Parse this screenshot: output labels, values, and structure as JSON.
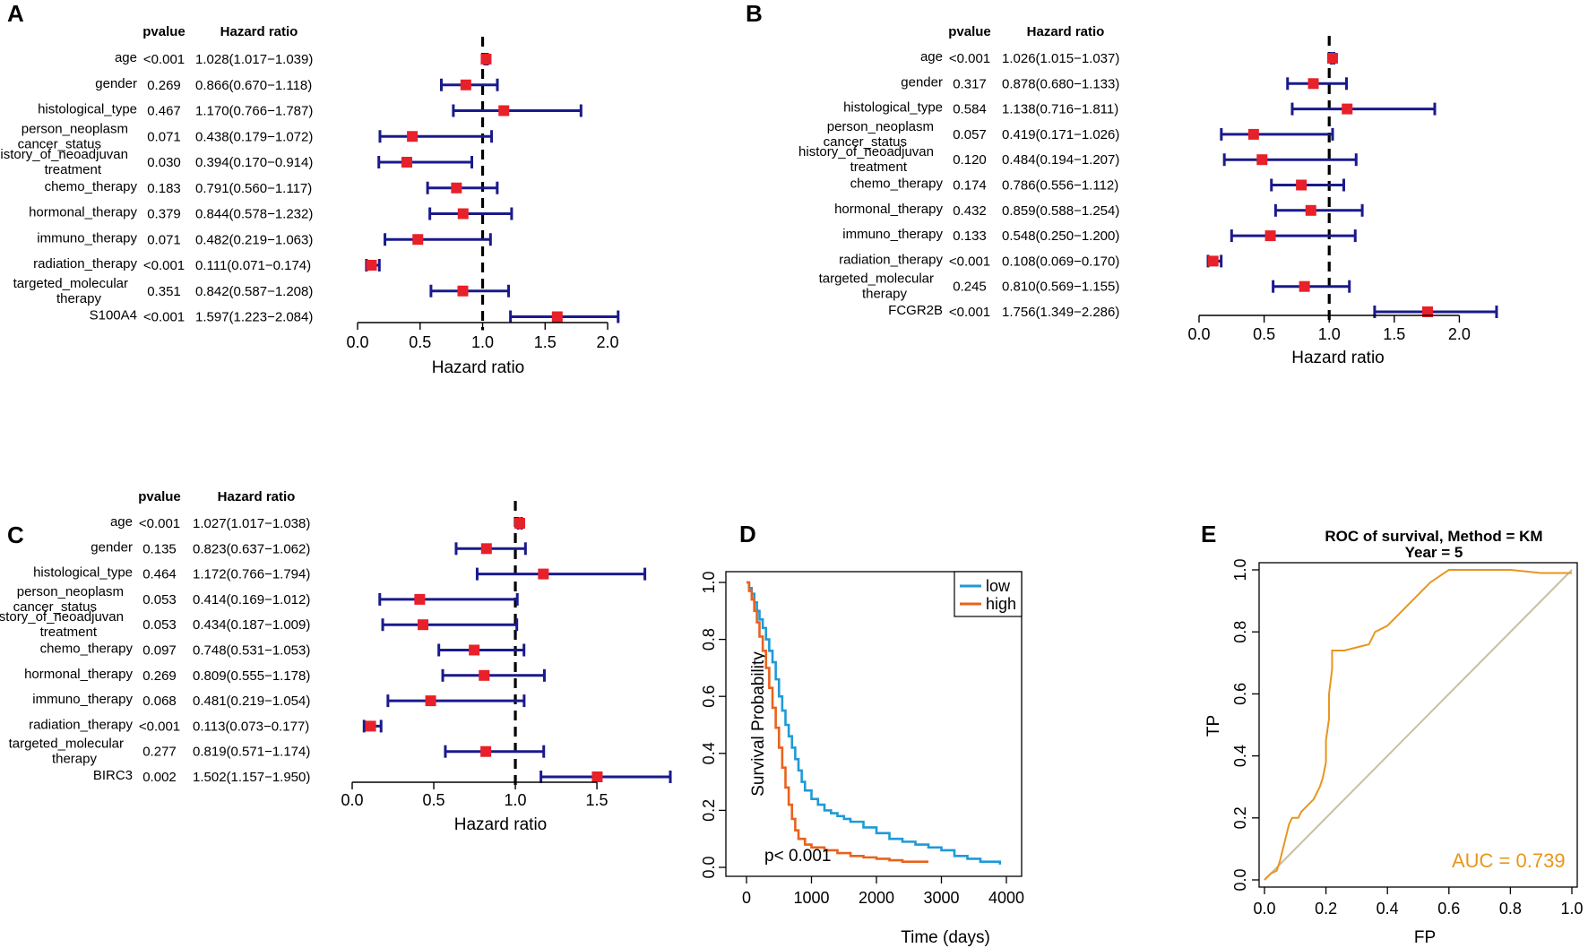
{
  "forest_plots": [
    {
      "letter": "A",
      "pvalue_header": "pvalue",
      "hr_header": "Hazard ratio",
      "xlabel": "Hazard ratio",
      "xlim": [
        0,
        2.1
      ],
      "ticks": [
        "0.0",
        "0.5",
        "1.0",
        "1.5",
        "2.0"
      ],
      "rows": [
        {
          "label": [
            "age"
          ],
          "pvalue": "<0.001",
          "hr_text": "1.028(1.017−1.039)",
          "hr": 1.028,
          "lo": 1.017,
          "hi": 1.039
        },
        {
          "label": [
            "gender"
          ],
          "pvalue": "0.269",
          "hr_text": "0.866(0.670−1.118)",
          "hr": 0.866,
          "lo": 0.67,
          "hi": 1.118
        },
        {
          "label": [
            "histological_type"
          ],
          "pvalue": "0.467",
          "hr_text": "1.170(0.766−1.787)",
          "hr": 1.17,
          "lo": 0.766,
          "hi": 1.787
        },
        {
          "label": [
            "person_neoplasm",
            "cancer_status"
          ],
          "pvalue": "0.071",
          "hr_text": "0.438(0.179−1.072)",
          "hr": 0.438,
          "lo": 0.179,
          "hi": 1.072
        },
        {
          "label": [
            "history_of_neoadjuvan",
            "treatment"
          ],
          "pvalue": "0.030",
          "hr_text": "0.394(0.170−0.914)",
          "hr": 0.394,
          "lo": 0.17,
          "hi": 0.914
        },
        {
          "label": [
            "chemo_therapy"
          ],
          "pvalue": "0.183",
          "hr_text": "0.791(0.560−1.117)",
          "hr": 0.791,
          "lo": 0.56,
          "hi": 1.117
        },
        {
          "label": [
            "hormonal_therapy"
          ],
          "pvalue": "0.379",
          "hr_text": "0.844(0.578−1.232)",
          "hr": 0.844,
          "lo": 0.578,
          "hi": 1.232
        },
        {
          "label": [
            "immuno_therapy"
          ],
          "pvalue": "0.071",
          "hr_text": "0.482(0.219−1.063)",
          "hr": 0.482,
          "lo": 0.219,
          "hi": 1.063
        },
        {
          "label": [
            "radiation_therapy"
          ],
          "pvalue": "<0.001",
          "hr_text": "0.111(0.071−0.174)",
          "hr": 0.111,
          "lo": 0.071,
          "hi": 0.174
        },
        {
          "label": [
            "targeted_molecular",
            "therapy"
          ],
          "pvalue": "0.351",
          "hr_text": "0.842(0.587−1.208)",
          "hr": 0.842,
          "lo": 0.587,
          "hi": 1.208
        },
        {
          "label": [
            "S100A4"
          ],
          "pvalue": "<0.001",
          "hr_text": "1.597(1.223−2.084)",
          "hr": 1.597,
          "lo": 1.223,
          "hi": 2.084
        }
      ]
    },
    {
      "letter": "B",
      "pvalue_header": "pvalue",
      "hr_header": "Hazard ratio",
      "xlabel": "Hazard ratio",
      "xlim": [
        0,
        2.3
      ],
      "ticks": [
        "0.0",
        "0.5",
        "1.0",
        "1.5",
        "2.0"
      ],
      "rows": [
        {
          "label": [
            "age"
          ],
          "pvalue": "<0.001",
          "hr_text": "1.026(1.015−1.037)",
          "hr": 1.026,
          "lo": 1.015,
          "hi": 1.037
        },
        {
          "label": [
            "gender"
          ],
          "pvalue": "0.317",
          "hr_text": "0.878(0.680−1.133)",
          "hr": 0.878,
          "lo": 0.68,
          "hi": 1.133
        },
        {
          "label": [
            "histological_type"
          ],
          "pvalue": "0.584",
          "hr_text": "1.138(0.716−1.811)",
          "hr": 1.138,
          "lo": 0.716,
          "hi": 1.811
        },
        {
          "label": [
            "person_neoplasm",
            "cancer_status"
          ],
          "pvalue": "0.057",
          "hr_text": "0.419(0.171−1.026)",
          "hr": 0.419,
          "lo": 0.171,
          "hi": 1.026
        },
        {
          "label": [
            "history_of_neoadjuvan",
            "treatment"
          ],
          "pvalue": "0.120",
          "hr_text": "0.484(0.194−1.207)",
          "hr": 0.484,
          "lo": 0.194,
          "hi": 1.207
        },
        {
          "label": [
            "chemo_therapy"
          ],
          "pvalue": "0.174",
          "hr_text": "0.786(0.556−1.112)",
          "hr": 0.786,
          "lo": 0.556,
          "hi": 1.112
        },
        {
          "label": [
            "hormonal_therapy"
          ],
          "pvalue": "0.432",
          "hr_text": "0.859(0.588−1.254)",
          "hr": 0.859,
          "lo": 0.588,
          "hi": 1.254
        },
        {
          "label": [
            "immuno_therapy"
          ],
          "pvalue": "0.133",
          "hr_text": "0.548(0.250−1.200)",
          "hr": 0.548,
          "lo": 0.25,
          "hi": 1.2
        },
        {
          "label": [
            "radiation_therapy"
          ],
          "pvalue": "<0.001",
          "hr_text": "0.108(0.069−0.170)",
          "hr": 0.108,
          "lo": 0.069,
          "hi": 0.17
        },
        {
          "label": [
            "targeted_molecular",
            "therapy"
          ],
          "pvalue": "0.245",
          "hr_text": "0.810(0.569−1.155)",
          "hr": 0.81,
          "lo": 0.569,
          "hi": 1.155
        },
        {
          "label": [
            "FCGR2B"
          ],
          "pvalue": "<0.001",
          "hr_text": "1.756(1.349−2.286)",
          "hr": 1.756,
          "lo": 1.349,
          "hi": 2.286
        }
      ]
    },
    {
      "letter": "C",
      "pvalue_header": "pvalue",
      "hr_header": "Hazard ratio",
      "xlabel": "Hazard ratio",
      "xlim": [
        0,
        1.95
      ],
      "ticks": [
        "0.0",
        "0.5",
        "1.0",
        "1.5"
      ],
      "rows": [
        {
          "label": [
            "age"
          ],
          "pvalue": "<0.001",
          "hr_text": "1.027(1.017−1.038)",
          "hr": 1.027,
          "lo": 1.017,
          "hi": 1.038
        },
        {
          "label": [
            "gender"
          ],
          "pvalue": "0.135",
          "hr_text": "0.823(0.637−1.062)",
          "hr": 0.823,
          "lo": 0.637,
          "hi": 1.062
        },
        {
          "label": [
            "histological_type"
          ],
          "pvalue": "0.464",
          "hr_text": "1.172(0.766−1.794)",
          "hr": 1.172,
          "lo": 0.766,
          "hi": 1.794
        },
        {
          "label": [
            "person_neoplasm",
            "cancer_status"
          ],
          "pvalue": "0.053",
          "hr_text": "0.414(0.169−1.012)",
          "hr": 0.414,
          "lo": 0.169,
          "hi": 1.012
        },
        {
          "label": [
            "history_of_neoadjuvan",
            "treatment"
          ],
          "pvalue": "0.053",
          "hr_text": "0.434(0.187−1.009)",
          "hr": 0.434,
          "lo": 0.187,
          "hi": 1.009
        },
        {
          "label": [
            "chemo_therapy"
          ],
          "pvalue": "0.097",
          "hr_text": "0.748(0.531−1.053)",
          "hr": 0.748,
          "lo": 0.531,
          "hi": 1.053
        },
        {
          "label": [
            "hormonal_therapy"
          ],
          "pvalue": "0.269",
          "hr_text": "0.809(0.555−1.178)",
          "hr": 0.809,
          "lo": 0.555,
          "hi": 1.178
        },
        {
          "label": [
            "immuno_therapy"
          ],
          "pvalue": "0.068",
          "hr_text": "0.481(0.219−1.054)",
          "hr": 0.481,
          "lo": 0.219,
          "hi": 1.054
        },
        {
          "label": [
            "radiation_therapy"
          ],
          "pvalue": "<0.001",
          "hr_text": "0.113(0.073−0.177)",
          "hr": 0.113,
          "lo": 0.073,
          "hi": 0.177
        },
        {
          "label": [
            "targeted_molecular",
            "therapy"
          ],
          "pvalue": "0.277",
          "hr_text": "0.819(0.571−1.174)",
          "hr": 0.819,
          "lo": 0.571,
          "hi": 1.174
        },
        {
          "label": [
            "BIRC3"
          ],
          "pvalue": "0.002",
          "hr_text": "1.502(1.157−1.950)",
          "hr": 1.502,
          "lo": 1.157,
          "hi": 1.95
        }
      ]
    }
  ],
  "km": {
    "letter": "D",
    "ylabel": "Survival Probability",
    "xlabel": "Time (days)",
    "xlim": [
      0,
      4000
    ],
    "ylim": [
      0,
      1
    ],
    "xticks": [
      0,
      1000,
      2000,
      3000,
      4000
    ],
    "yticks": [
      "0.0",
      "0.2",
      "0.4",
      "0.6",
      "0.8",
      "1.0"
    ],
    "pvalue_text": "p< 0.001",
    "legend_position": "top-right",
    "series": [
      {
        "name": "low",
        "color": "#1f9ad6",
        "points": [
          [
            0,
            1.0
          ],
          [
            40,
            0.98
          ],
          [
            80,
            0.96
          ],
          [
            120,
            0.93
          ],
          [
            160,
            0.9
          ],
          [
            200,
            0.87
          ],
          [
            250,
            0.84
          ],
          [
            300,
            0.8
          ],
          [
            350,
            0.76
          ],
          [
            400,
            0.72
          ],
          [
            450,
            0.66
          ],
          [
            500,
            0.6
          ],
          [
            550,
            0.55
          ],
          [
            600,
            0.5
          ],
          [
            650,
            0.46
          ],
          [
            700,
            0.42
          ],
          [
            750,
            0.38
          ],
          [
            800,
            0.34
          ],
          [
            850,
            0.3
          ],
          [
            900,
            0.27
          ],
          [
            1000,
            0.24
          ],
          [
            1100,
            0.22
          ],
          [
            1200,
            0.2
          ],
          [
            1300,
            0.19
          ],
          [
            1400,
            0.18
          ],
          [
            1500,
            0.17
          ],
          [
            1600,
            0.16
          ],
          [
            1800,
            0.14
          ],
          [
            2000,
            0.12
          ],
          [
            2200,
            0.1
          ],
          [
            2400,
            0.09
          ],
          [
            2600,
            0.08
          ],
          [
            2800,
            0.07
          ],
          [
            3000,
            0.06
          ],
          [
            3200,
            0.04
          ],
          [
            3400,
            0.03
          ],
          [
            3600,
            0.02
          ],
          [
            3900,
            0.01
          ]
        ]
      },
      {
        "name": "high",
        "color": "#e8621e",
        "points": [
          [
            0,
            1.0
          ],
          [
            40,
            0.97
          ],
          [
            80,
            0.94
          ],
          [
            120,
            0.9
          ],
          [
            160,
            0.86
          ],
          [
            200,
            0.81
          ],
          [
            250,
            0.76
          ],
          [
            300,
            0.7
          ],
          [
            350,
            0.63
          ],
          [
            400,
            0.56
          ],
          [
            450,
            0.49
          ],
          [
            500,
            0.42
          ],
          [
            550,
            0.35
          ],
          [
            600,
            0.28
          ],
          [
            650,
            0.22
          ],
          [
            700,
            0.17
          ],
          [
            750,
            0.13
          ],
          [
            800,
            0.1
          ],
          [
            900,
            0.08
          ],
          [
            1000,
            0.07
          ],
          [
            1200,
            0.06
          ],
          [
            1400,
            0.05
          ],
          [
            1600,
            0.04
          ],
          [
            1800,
            0.035
          ],
          [
            2000,
            0.03
          ],
          [
            2200,
            0.025
          ],
          [
            2400,
            0.02
          ],
          [
            2600,
            0.02
          ],
          [
            2800,
            0.02
          ]
        ]
      }
    ]
  },
  "roc": {
    "letter": "E",
    "title_line1": "ROC of survival, Method = KM",
    "title_line2": "Year = 5",
    "xlabel": "FP",
    "ylabel": "TP",
    "xlim": [
      0,
      1
    ],
    "ylim": [
      0,
      1
    ],
    "xticks": [
      "0.0",
      "0.2",
      "0.4",
      "0.6",
      "0.8",
      "1.0"
    ],
    "yticks": [
      "0.0",
      "0.2",
      "0.4",
      "0.6",
      "0.8",
      "1.0"
    ],
    "auc_text": "AUC =  0.739",
    "curve_color": "#e8961e",
    "diagonal_color": "#c8c0a0",
    "points": [
      [
        0,
        0
      ],
      [
        0.02,
        0.02
      ],
      [
        0.04,
        0.03
      ],
      [
        0.05,
        0.06
      ],
      [
        0.06,
        0.1
      ],
      [
        0.07,
        0.14
      ],
      [
        0.08,
        0.18
      ],
      [
        0.09,
        0.2
      ],
      [
        0.11,
        0.2
      ],
      [
        0.12,
        0.22
      ],
      [
        0.14,
        0.24
      ],
      [
        0.16,
        0.26
      ],
      [
        0.17,
        0.28
      ],
      [
        0.18,
        0.3
      ],
      [
        0.19,
        0.33
      ],
      [
        0.2,
        0.38
      ],
      [
        0.2,
        0.45
      ],
      [
        0.21,
        0.52
      ],
      [
        0.21,
        0.6
      ],
      [
        0.22,
        0.68
      ],
      [
        0.22,
        0.74
      ],
      [
        0.26,
        0.74
      ],
      [
        0.3,
        0.75
      ],
      [
        0.34,
        0.76
      ],
      [
        0.36,
        0.8
      ],
      [
        0.4,
        0.82
      ],
      [
        0.42,
        0.84
      ],
      [
        0.44,
        0.86
      ],
      [
        0.46,
        0.88
      ],
      [
        0.48,
        0.9
      ],
      [
        0.5,
        0.92
      ],
      [
        0.52,
        0.94
      ],
      [
        0.54,
        0.96
      ],
      [
        0.57,
        0.98
      ],
      [
        0.6,
        1.0
      ],
      [
        0.7,
        1.0
      ],
      [
        0.8,
        1.0
      ],
      [
        0.9,
        0.99
      ],
      [
        1.0,
        0.99
      ]
    ]
  }
}
